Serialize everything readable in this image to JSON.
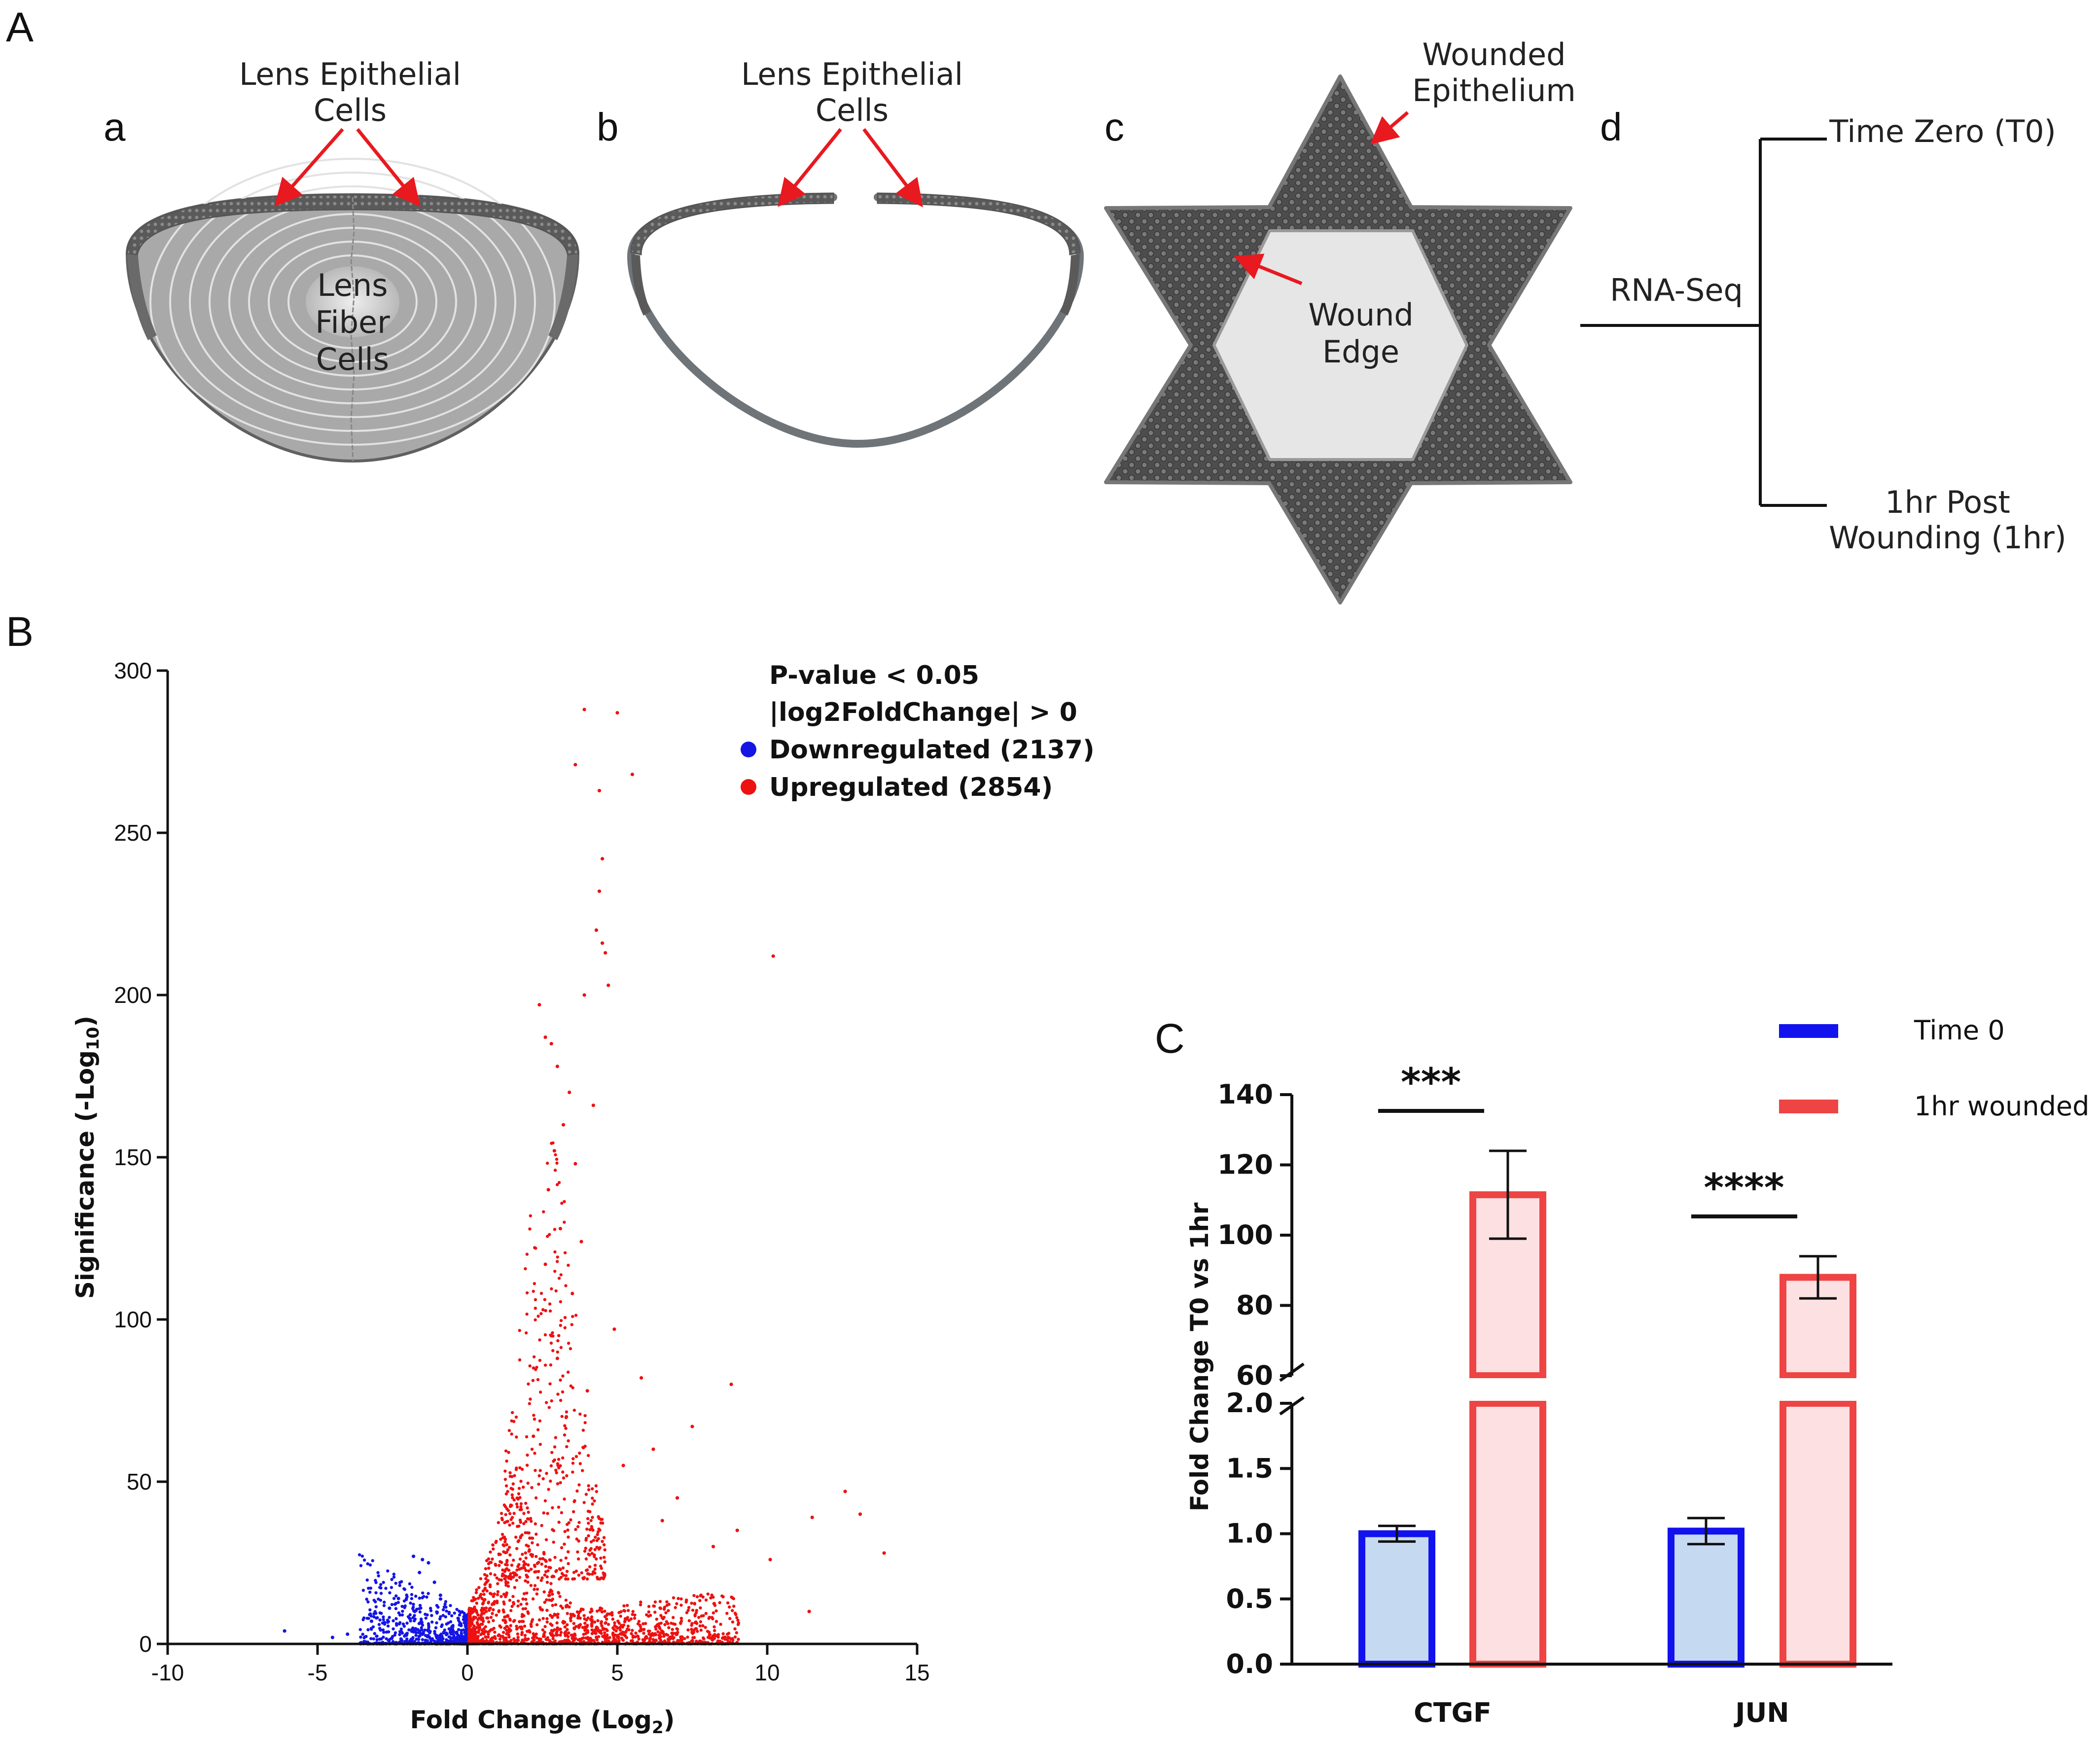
{
  "panels": {
    "A": {
      "letter": "A",
      "sub_a": {
        "letter": "a",
        "cells_line1": "Lens Epithelial",
        "cells_line2": "Cells",
        "fiber_line1": "Lens",
        "fiber_line2": "Fiber",
        "fiber_line3": "Cells"
      },
      "sub_b": {
        "letter": "b",
        "cells_line1": "Lens Epithelial",
        "cells_line2": "Cells"
      },
      "sub_c": {
        "letter": "c",
        "wounded_line1": "Wounded",
        "wounded_line2": "Epithelium",
        "edge_line1": "Wound",
        "edge_line2": "Edge"
      },
      "sub_d": {
        "letter": "d",
        "method": "RNA-Seq",
        "t0": "Time Zero (T0)",
        "t1_line1": "1hr Post",
        "t1_line2": "Wounding (1hr)"
      }
    },
    "B": {
      "letter": "B"
    },
    "C": {
      "letter": "C"
    }
  },
  "colors": {
    "down": "#1515e6",
    "up": "#ee1111",
    "blue_bar_fill": "#c5d9f1",
    "blue_bar_edge": "#1212ee",
    "red_bar_fill": "#fde0e2",
    "red_bar_edge": "#ee4444",
    "arrow": "#e8191f"
  },
  "chart_data": [
    {
      "type": "scatter",
      "title": "",
      "xlabel_prefix": "Fold Change (Log",
      "xlabel_sub": "2",
      "xlabel_suffix": ")",
      "ylabel_prefix": "Significance (-Log",
      "ylabel_sub": "10",
      "ylabel_suffix": ")",
      "xlim": [
        -10,
        15
      ],
      "ylim": [
        0,
        300
      ],
      "xticks": [
        -10,
        -5,
        0,
        5,
        10,
        15
      ],
      "yticks": [
        0,
        50,
        100,
        150,
        200,
        250,
        300
      ],
      "legend_title_line1": "P-value < 0.05",
      "legend_title_line2": "|log2FoldChange| > 0",
      "series": [
        {
          "name": "Downregulated",
          "count": 2137,
          "label": "Downregulated (2137)",
          "color": "#1515e6"
        },
        {
          "name": "Upregulated",
          "count": 2854,
          "label": "Upregulated (2854)",
          "color": "#ee1111"
        }
      ],
      "highlight_points_up": [
        [
          3.9,
          288
        ],
        [
          5.0,
          287
        ],
        [
          3.6,
          271
        ],
        [
          5.5,
          268
        ],
        [
          4.4,
          263
        ],
        [
          4.5,
          242
        ],
        [
          4.4,
          232
        ],
        [
          4.3,
          220
        ],
        [
          4.5,
          216
        ],
        [
          4.6,
          213
        ],
        [
          10.2,
          212
        ],
        [
          4.7,
          203
        ],
        [
          3.9,
          200
        ],
        [
          2.4,
          197
        ],
        [
          2.6,
          187
        ],
        [
          2.8,
          185
        ],
        [
          3.0,
          178
        ],
        [
          3.4,
          170
        ],
        [
          4.2,
          166
        ],
        [
          3.2,
          160
        ],
        [
          2.9,
          152
        ],
        [
          3.6,
          148
        ],
        [
          2.7,
          140
        ],
        [
          3.1,
          128
        ],
        [
          3.8,
          124
        ],
        [
          2.6,
          117
        ],
        [
          3.5,
          108
        ],
        [
          4.9,
          97
        ],
        [
          2.8,
          95
        ],
        [
          5.8,
          82
        ],
        [
          8.8,
          80
        ],
        [
          3.3,
          70
        ],
        [
          7.5,
          67
        ],
        [
          6.2,
          60
        ],
        [
          12.6,
          47
        ],
        [
          13.1,
          40
        ],
        [
          11.5,
          39
        ],
        [
          13.9,
          28
        ],
        [
          9.0,
          35
        ],
        [
          10.1,
          26
        ],
        [
          11.4,
          10
        ],
        [
          7.0,
          45
        ],
        [
          6.5,
          38
        ],
        [
          8.2,
          30
        ],
        [
          5.2,
          55
        ],
        [
          4.0,
          78
        ],
        [
          3.0,
          88
        ],
        [
          2.2,
          64
        ]
      ],
      "highlight_points_down": [
        [
          -1.8,
          27
        ],
        [
          -1.5,
          26
        ],
        [
          -1.3,
          25
        ],
        [
          -1.6,
          22
        ],
        [
          -1.1,
          19
        ],
        [
          -0.9,
          15
        ],
        [
          -2.3,
          14
        ],
        [
          -2.6,
          11
        ],
        [
          -3.2,
          7
        ],
        [
          -4.0,
          3
        ],
        [
          -4.5,
          2
        ],
        [
          -6.1,
          4
        ]
      ]
    },
    {
      "type": "bar",
      "title": "",
      "ylabel": "Fold Change T0 vs 1hr",
      "categories": [
        "CTGF",
        "JUN"
      ],
      "series": [
        {
          "name": "Time 0",
          "values": [
            1.0,
            1.02
          ],
          "errors": [
            0.06,
            0.1
          ]
        },
        {
          "name": "1hr wounded",
          "values": [
            111.5,
            88.0
          ],
          "errors": [
            12.5,
            6.0
          ]
        }
      ],
      "y_axis_break": {
        "lower_range": [
          0,
          2.0
        ],
        "upper_range": [
          60,
          140
        ]
      },
      "lower_yticks": [
        "0.0",
        "0.5",
        "1.0",
        "1.5",
        "2.0"
      ],
      "upper_yticks": [
        "60",
        "80",
        "100",
        "120",
        "140"
      ],
      "significance": [
        "***",
        "****"
      ]
    }
  ]
}
